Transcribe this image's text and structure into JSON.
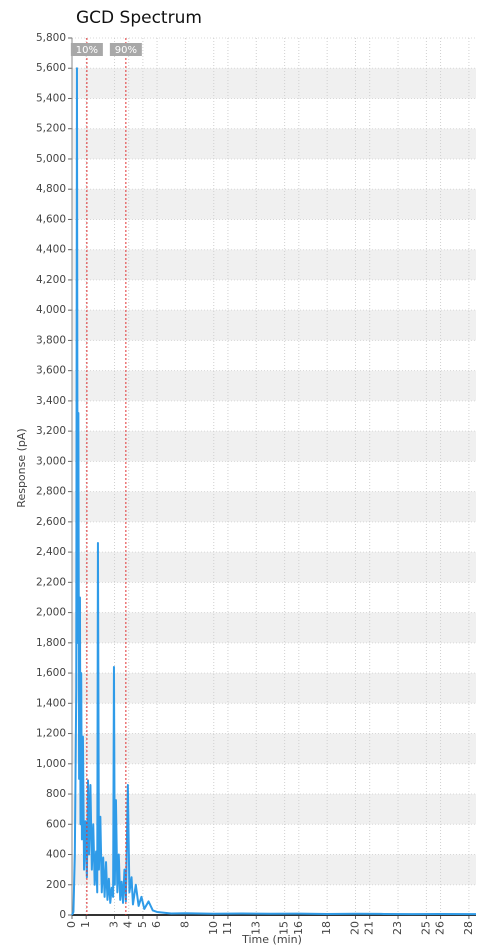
{
  "chart_data": {
    "type": "line",
    "title": "GCD Spectrum",
    "x_label": "Time (min)",
    "y_label": "Response (pA)",
    "xlim": [
      0,
      28.5
    ],
    "ylim": [
      0,
      5800
    ],
    "xticks": [
      0,
      1,
      3,
      4,
      5,
      6,
      8,
      10,
      11,
      13,
      15,
      16,
      18,
      20,
      21,
      23,
      25,
      26,
      28
    ],
    "yticks": [
      0,
      200,
      400,
      600,
      800,
      {
        "value": 1000,
        "label": "1,000"
      },
      {
        "value": 1200,
        "label": "1,200"
      },
      {
        "value": 1400,
        "label": "1,400"
      },
      {
        "value": 1600,
        "label": "1,600"
      },
      {
        "value": 1800,
        "label": "1,800"
      },
      {
        "value": 2000,
        "label": "2,000"
      },
      {
        "value": 2200,
        "label": "2,200"
      },
      {
        "value": 2400,
        "label": "2,400"
      },
      {
        "value": 2600,
        "label": "2,600"
      },
      {
        "value": 2800,
        "label": "2,800"
      },
      {
        "value": 3000,
        "label": "3,000"
      },
      {
        "value": 3200,
        "label": "3,200"
      },
      {
        "value": 3400,
        "label": "3,400"
      },
      {
        "value": 3600,
        "label": "3,600"
      },
      {
        "value": 3800,
        "label": "3,800"
      },
      {
        "value": 4000,
        "label": "4,000"
      },
      {
        "value": 4200,
        "label": "4,200"
      },
      {
        "value": 4400,
        "label": "4,400"
      },
      {
        "value": 4600,
        "label": "4,600"
      },
      {
        "value": 4800,
        "label": "4,800"
      },
      {
        "value": 5000,
        "label": "5,000"
      },
      {
        "value": 5200,
        "label": "5,200"
      },
      {
        "value": 5400,
        "label": "5,400"
      },
      {
        "value": 5600,
        "label": "5,600"
      },
      {
        "value": 5800,
        "label": "5,800"
      }
    ],
    "grid": true,
    "markers": [
      {
        "label": "10%",
        "x": 1.05,
        "color": "#e03030"
      },
      {
        "label": "90%",
        "x": 3.8,
        "color": "#e03030"
      }
    ],
    "series": [
      {
        "name": "GCD",
        "color": "#2f9be8",
        "x": [
          0,
          0.1,
          0.2,
          0.3,
          0.35,
          0.4,
          0.45,
          0.5,
          0.56,
          0.6,
          0.65,
          0.7,
          0.77,
          0.85,
          0.95,
          1.05,
          1.13,
          1.2,
          1.3,
          1.4,
          1.5,
          1.6,
          1.7,
          1.78,
          1.83,
          1.9,
          2.0,
          2.1,
          2.2,
          2.3,
          2.4,
          2.5,
          2.6,
          2.7,
          2.8,
          2.9,
          2.96,
          3.02,
          3.1,
          3.2,
          3.3,
          3.4,
          3.5,
          3.6,
          3.7,
          3.8,
          3.94,
          4.05,
          4.2,
          4.3,
          4.5,
          4.7,
          4.9,
          5.1,
          5.4,
          5.7,
          6.0,
          6.5,
          7,
          8,
          10,
          12,
          14,
          16,
          18,
          20,
          22,
          24,
          26,
          28.5
        ],
        "values": [
          0,
          20,
          400,
          1500,
          5600,
          1800,
          3320,
          900,
          2100,
          600,
          1600,
          500,
          1180,
          300,
          620,
          250,
          890,
          400,
          860,
          300,
          600,
          200,
          420,
          150,
          2460,
          300,
          650,
          150,
          380,
          120,
          350,
          100,
          240,
          80,
          180,
          120,
          1640,
          200,
          760,
          150,
          400,
          100,
          220,
          80,
          300,
          90,
          860,
          150,
          250,
          70,
          200,
          60,
          120,
          40,
          90,
          30,
          20,
          15,
          10,
          12,
          8,
          10,
          8,
          9,
          7,
          8,
          7,
          6,
          7,
          6
        ]
      }
    ]
  }
}
